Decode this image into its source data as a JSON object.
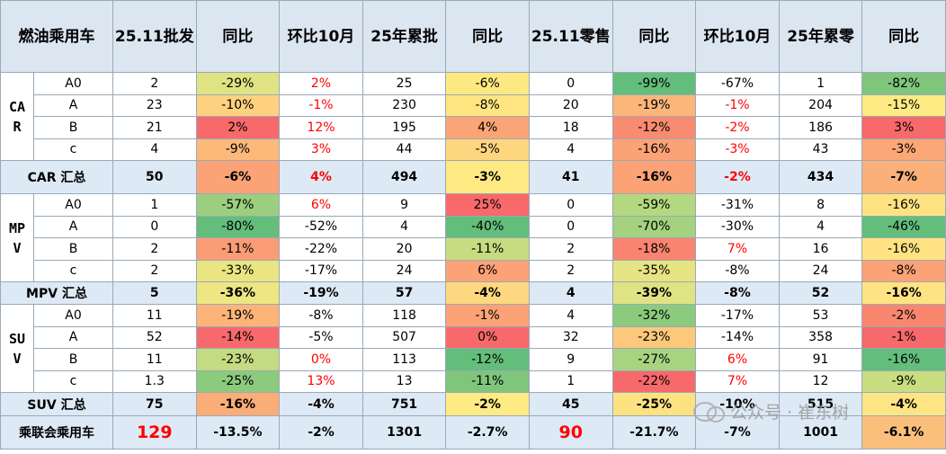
{
  "header": {
    "title": "燃油乘用车",
    "columns": [
      "25.11批发",
      "同比",
      "环比10月",
      "25年累批",
      "同比",
      "25.11零售",
      "同比",
      "环比10月",
      "25年累零",
      "同比"
    ]
  },
  "groups": [
    {
      "label": "CAR",
      "rows": [
        {
          "label": "A0",
          "cells": [
            "2",
            "-29%",
            "2%",
            "25",
            "-6%",
            "0",
            "-99%",
            "-67%",
            "1",
            "-82%"
          ],
          "fills": [
            null,
            "#dfe383",
            null,
            null,
            "#fde981",
            null,
            "#63be7b",
            null,
            null,
            "#7fc67c"
          ],
          "text_colors": [
            null,
            null,
            "#ff0000",
            null,
            null,
            null,
            null,
            null,
            null,
            null
          ]
        },
        {
          "label": "A",
          "cells": [
            "23",
            "-10%",
            "-1%",
            "230",
            "-8%",
            "20",
            "-19%",
            "-1%",
            "204",
            "-15%"
          ],
          "fills": [
            null,
            "#fdd17f",
            null,
            null,
            "#fee582",
            null,
            "#fcb67a",
            null,
            null,
            "#ffeb84"
          ],
          "text_colors": [
            null,
            null,
            "#ff0000",
            null,
            null,
            null,
            null,
            "#ff0000",
            null,
            null
          ]
        },
        {
          "label": "B",
          "cells": [
            "21",
            "2%",
            "12%",
            "195",
            "4%",
            "18",
            "-12%",
            "-2%",
            "186",
            "3%"
          ],
          "fills": [
            null,
            "#f8696b",
            null,
            null,
            "#fba476",
            null,
            "#f98b71",
            null,
            null,
            "#f8696b"
          ],
          "text_colors": [
            null,
            null,
            "#ff0000",
            null,
            null,
            null,
            null,
            "#ff0000",
            null,
            null
          ]
        },
        {
          "label": "c",
          "cells": [
            "4",
            "-9%",
            "3%",
            "44",
            "-5%",
            "4",
            "-16%",
            "-3%",
            "43",
            "-3%"
          ],
          "fills": [
            null,
            "#fcb97a",
            null,
            null,
            "#fed680",
            null,
            "#fba276",
            null,
            null,
            "#fba777"
          ],
          "text_colors": [
            null,
            null,
            "#ff0000",
            null,
            null,
            null,
            null,
            "#ff0000",
            null,
            null
          ]
        }
      ],
      "summary": {
        "label": "CAR 汇总",
        "cells": [
          "50",
          "-6%",
          "4%",
          "494",
          "-3%",
          "41",
          "-16%",
          "-2%",
          "434",
          "-7%"
        ],
        "fills": [
          null,
          "#fba276",
          null,
          null,
          "#ffe983",
          null,
          "#fba276",
          null,
          null,
          "#fbb079"
        ],
        "text_colors": [
          null,
          null,
          "#ff0000",
          null,
          null,
          null,
          null,
          "#ff0000",
          null,
          null
        ]
      }
    },
    {
      "label": "MPV",
      "rows": [
        {
          "label": "A0",
          "cells": [
            "1",
            "-57%",
            "6%",
            "9",
            "25%",
            "0",
            "-59%",
            "-31%",
            "8",
            "-16%"
          ],
          "fills": [
            null,
            "#9bcf7f",
            null,
            null,
            "#f8696b",
            null,
            "#b4d880",
            null,
            null,
            "#ffe383"
          ],
          "text_colors": [
            null,
            null,
            "#ff0000",
            null,
            null,
            null,
            null,
            null,
            null,
            null
          ]
        },
        {
          "label": "A",
          "cells": [
            "0",
            "-80%",
            "-52%",
            "4",
            "-40%",
            "0",
            "-70%",
            "-30%",
            "4",
            "-46%"
          ],
          "fills": [
            null,
            "#63be7b",
            null,
            null,
            "#63be7b",
            null,
            "#a4d27f",
            null,
            null,
            "#63be7b"
          ],
          "text_colors": [
            null,
            null,
            null,
            null,
            null,
            null,
            null,
            null,
            null,
            null
          ]
        },
        {
          "label": "B",
          "cells": [
            "2",
            "-11%",
            "-22%",
            "20",
            "-11%",
            "2",
            "-18%",
            "7%",
            "16",
            "-16%"
          ],
          "fills": [
            null,
            "#fa9c75",
            null,
            null,
            "#c7dc81",
            null,
            "#f98571",
            null,
            null,
            "#ffe383"
          ],
          "text_colors": [
            null,
            null,
            null,
            null,
            null,
            null,
            null,
            "#ff0000",
            null,
            null
          ]
        },
        {
          "label": "c",
          "cells": [
            "2",
            "-33%",
            "-17%",
            "24",
            "6%",
            "2",
            "-35%",
            "-8%",
            "24",
            "-8%"
          ],
          "fills": [
            null,
            "#e9e583",
            null,
            null,
            "#fba276",
            null,
            "#e6e483",
            null,
            null,
            "#fba276"
          ],
          "text_colors": [
            null,
            null,
            null,
            null,
            null,
            null,
            null,
            null,
            null,
            null
          ]
        }
      ],
      "summary": {
        "label": "MPV 汇总",
        "cells": [
          "5",
          "-36%",
          "-19%",
          "57",
          "-4%",
          "4",
          "-39%",
          "-8%",
          "52",
          "-16%"
        ],
        "fills": [
          null,
          "#eee683",
          null,
          null,
          "#fed880",
          null,
          "#e0e383",
          null,
          null,
          "#ffe383"
        ],
        "text_colors": [
          null,
          null,
          null,
          null,
          null,
          null,
          null,
          null,
          null,
          null
        ]
      }
    },
    {
      "label": "SUV",
      "rows": [
        {
          "label": "A0",
          "cells": [
            "11",
            "-19%",
            "-8%",
            "118",
            "-1%",
            "4",
            "-32%",
            "-17%",
            "53",
            "-2%"
          ],
          "fills": [
            null,
            "#fcb479",
            null,
            null,
            "#fba276",
            null,
            "#8cca7d",
            null,
            null,
            "#f9876f"
          ],
          "text_colors": [
            null,
            null,
            null,
            null,
            null,
            null,
            null,
            null,
            null,
            null
          ]
        },
        {
          "label": "A",
          "cells": [
            "52",
            "-14%",
            "-5%",
            "507",
            "0%",
            "32",
            "-23%",
            "-14%",
            "358",
            "-1%"
          ],
          "fills": [
            null,
            "#f8696b",
            null,
            null,
            "#f8696b",
            null,
            "#fcc87c",
            null,
            null,
            "#f8696b"
          ],
          "text_colors": [
            null,
            null,
            null,
            null,
            null,
            null,
            null,
            null,
            null,
            null
          ]
        },
        {
          "label": "B",
          "cells": [
            "11",
            "-23%",
            "0%",
            "113",
            "-12%",
            "9",
            "-27%",
            "6%",
            "91",
            "-16%"
          ],
          "fills": [
            null,
            "#c3db81",
            null,
            null,
            "#63be7b",
            null,
            "#a8d47f",
            null,
            null,
            "#63be7b"
          ],
          "text_colors": [
            null,
            null,
            "#ff0000",
            null,
            null,
            null,
            null,
            "#ff0000",
            null,
            null
          ]
        },
        {
          "label": "c",
          "cells": [
            "1.3",
            "-25%",
            "13%",
            "13",
            "-11%",
            "1",
            "-22%",
            "7%",
            "12",
            "-9%"
          ],
          "fills": [
            null,
            "#8ccb7e",
            null,
            null,
            "#7fc67c",
            null,
            "#f8696b",
            null,
            null,
            "#c9dd81"
          ],
          "text_colors": [
            null,
            null,
            "#ff0000",
            null,
            null,
            null,
            null,
            "#ff0000",
            null,
            null
          ]
        }
      ],
      "summary": {
        "label": "SUV 汇总",
        "cells": [
          "75",
          "-16%",
          "-4%",
          "751",
          "-2%",
          "45",
          "-25%",
          "-10%",
          "515",
          "-4%"
        ],
        "fills": [
          null,
          "#fbad78",
          null,
          null,
          "#feeb84",
          null,
          "#fde282",
          null,
          null,
          "#fee583"
        ],
        "text_colors": [
          null,
          null,
          null,
          null,
          null,
          null,
          null,
          null,
          null,
          null
        ]
      }
    }
  ],
  "total": {
    "label": "乘联会乘用车",
    "cells": [
      "129",
      "-13.5%",
      "-2%",
      "1301",
      "-2.7%",
      "90",
      "-21.7%",
      "-7%",
      "1001",
      "-6.1%"
    ],
    "fills": [
      null,
      null,
      null,
      null,
      null,
      null,
      null,
      null,
      null,
      "#fbbf7c"
    ],
    "text_colors": [
      "#ff0000",
      null,
      null,
      null,
      null,
      "#ff0000",
      null,
      null,
      null,
      null
    ]
  },
  "watermark": "公众号 · 崔东树"
}
